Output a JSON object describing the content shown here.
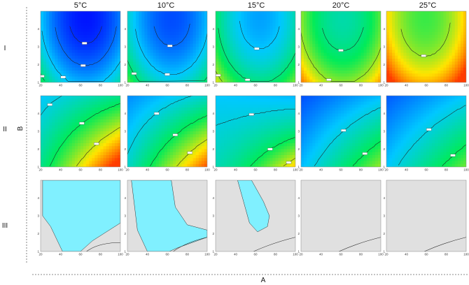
{
  "chart_data": {
    "type": "heatmap",
    "layout": "3 rows x 5 columns of contour plots",
    "xlabel": "A",
    "ylabel": "B",
    "columns": [
      "5°C",
      "10°C",
      "15°C",
      "20°C",
      "25°C"
    ],
    "rows": [
      "I",
      "II",
      "III"
    ],
    "xlim": [
      20,
      100
    ],
    "ylim": [
      1,
      5
    ],
    "xticks": [
      "20",
      "40",
      "60",
      "80",
      "100"
    ],
    "yticks": [
      "1",
      "2",
      "3",
      "4"
    ],
    "rows_info": [
      {
        "name": "I",
        "kind": "gradient",
        "description_colors": [
          "#0010ff",
          "#00c8ff",
          "#00ff60",
          "#ffe000",
          "#ff4000"
        ]
      },
      {
        "name": "II",
        "kind": "gradient"
      },
      {
        "name": "III",
        "kind": "overlay",
        "feasible_color": "#80f0ff",
        "infeasible_color": "#e0e0e0"
      }
    ],
    "row_I": {
      "levels": [
        0.05,
        0.15,
        0.3,
        0.5,
        0.7
      ],
      "panels": [
        {
          "column": "5°C",
          "v0": 0.0,
          "slope": 0.1
        },
        {
          "column": "10°C",
          "v0": 0.08,
          "slope": 0.12
        },
        {
          "column": "15°C",
          "v0": 0.22,
          "slope": 0.12
        },
        {
          "column": "20°C",
          "v0": 0.38,
          "slope": 0.18
        },
        {
          "column": "25°C",
          "v0": 0.52,
          "slope": 0.25
        }
      ]
    },
    "row_II": {
      "levels": [
        0.35,
        0.55,
        0.75
      ],
      "panels": [
        {
          "column": "5°C",
          "v0": 0.48,
          "gain": 0.5,
          "plateau": 0
        },
        {
          "column": "10°C",
          "v0": 0.38,
          "gain": 0.5,
          "plateau": 0
        },
        {
          "column": "15°C",
          "v0": 0.3,
          "gain": 0.45,
          "plateau": 1
        },
        {
          "column": "20°C",
          "v0": 0.28,
          "gain": 0.35,
          "plateau": 0
        },
        {
          "column": "25°C",
          "v0": 0.3,
          "gain": 0.3,
          "plateau": 0
        }
      ]
    },
    "row_III": {
      "panels": [
        {
          "column": "5°C",
          "region": [
            [
              22,
              5
            ],
            [
              100,
              5
            ],
            [
              100,
              2.6
            ],
            [
              72,
              1.6
            ],
            [
              60,
              1
            ],
            [
              42,
              1
            ],
            [
              30,
              2.4
            ],
            [
              22,
              3
            ]
          ]
        },
        {
          "column": "10°C",
          "region": [
            [
              24,
              5
            ],
            [
              64,
              5
            ],
            [
              68,
              3.5
            ],
            [
              80,
              2.5
            ],
            [
              100,
              2.2
            ],
            [
              100,
              1.8
            ],
            [
              70,
              1.2
            ],
            [
              62,
              1
            ],
            [
              40,
              1
            ],
            [
              30,
              2.2
            ]
          ]
        },
        {
          "column": "15°C",
          "region": [
            [
              42,
              5
            ],
            [
              56,
              5
            ],
            [
              68,
              3.8
            ],
            [
              74,
              3
            ],
            [
              72,
              2.4
            ],
            [
              62,
              2.1
            ],
            [
              54,
              2.6
            ],
            [
              48,
              3.8
            ]
          ]
        },
        {
          "column": "20°C",
          "region": []
        },
        {
          "column": "25°C",
          "region": []
        }
      ]
    }
  }
}
